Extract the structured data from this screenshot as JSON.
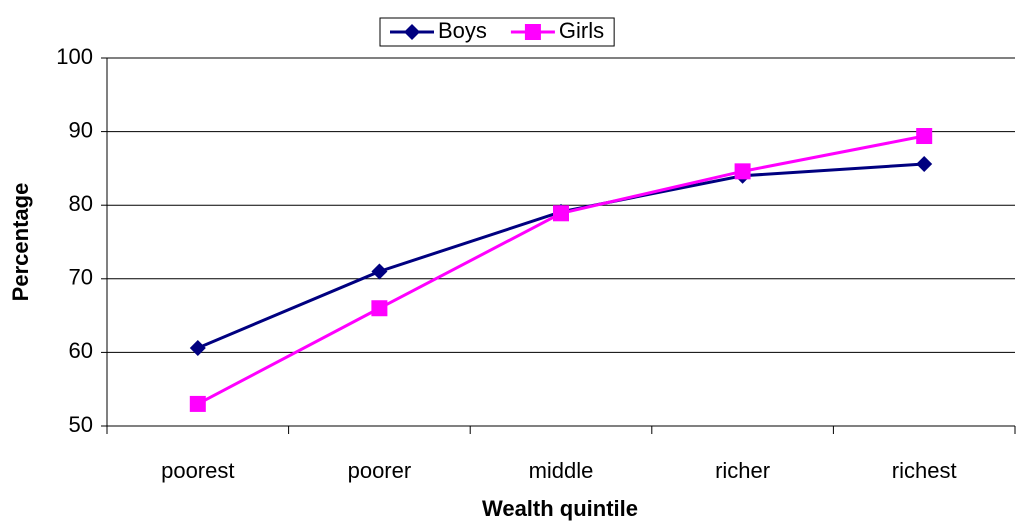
{
  "chart_data": {
    "type": "line",
    "x_label": "Wealth quintile",
    "y_label": "Percentage",
    "categories": [
      "poorest",
      "poorer",
      "middle",
      "richer",
      "richest"
    ],
    "series": [
      {
        "name": "Boys",
        "color": "#000080",
        "marker": "diamond",
        "values": [
          60.6,
          71.0,
          79.1,
          84.0,
          85.6
        ]
      },
      {
        "name": "Girls",
        "color": "#ff00ff",
        "marker": "square",
        "values": [
          53.0,
          66.0,
          78.9,
          84.6,
          89.4
        ]
      }
    ],
    "ylim": [
      50,
      100
    ],
    "yticks": [
      50,
      60,
      70,
      80,
      90,
      100
    ],
    "grid": true,
    "legend": "top"
  }
}
